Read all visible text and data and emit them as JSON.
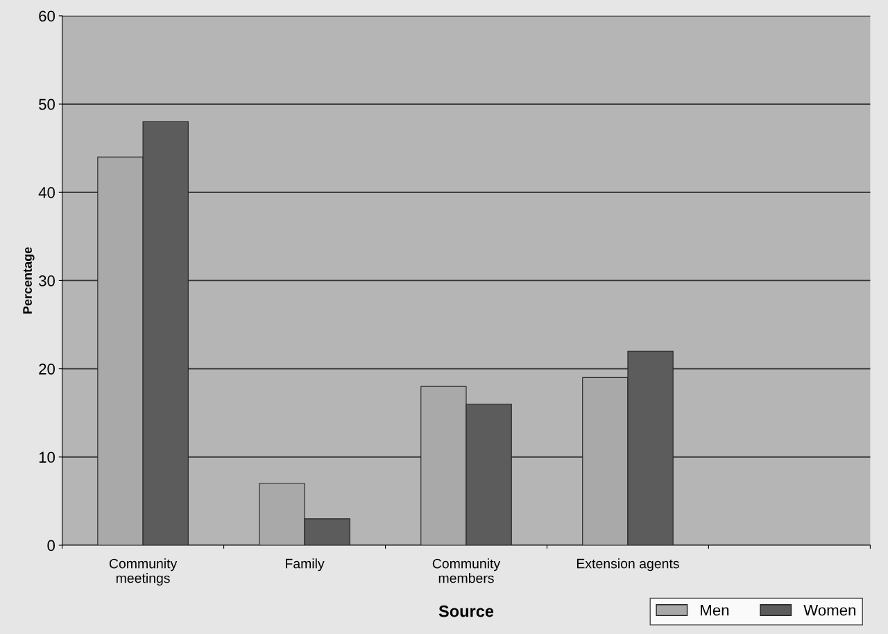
{
  "chart_data": {
    "type": "bar",
    "xlabel": "Source",
    "ylabel": "Percentage",
    "categories": [
      "Community\nmeetings",
      "Family",
      "Community\nmembers",
      "Extension agents",
      null
    ],
    "series": [
      {
        "name": "Men",
        "color": "#a9a9a9",
        "values": [
          44,
          7,
          18,
          19,
          null
        ]
      },
      {
        "name": "Women",
        "color": "#5c5c5c",
        "values": [
          48,
          3,
          16,
          22,
          null
        ]
      }
    ],
    "ylim": [
      0,
      60
    ],
    "yticks": [
      0,
      10,
      20,
      30,
      40,
      50,
      60
    ],
    "grid": "y",
    "legend": "bottom right"
  }
}
